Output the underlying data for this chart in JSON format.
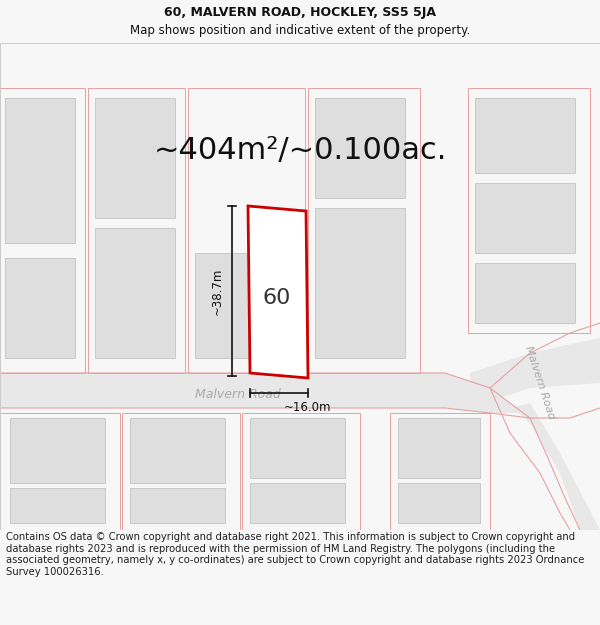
{
  "title_line1": "60, MALVERN ROAD, HOCKLEY, SS5 5JA",
  "title_line2": "Map shows position and indicative extent of the property.",
  "area_text": "~404m²/~0.100ac.",
  "property_number": "60",
  "dim_height_label": "~38.7m",
  "dim_width_label": "~16.0m",
  "road_name1": "Malvern Road",
  "road_name2": "Malvern Road",
  "footer_text": "Contains OS data © Crown copyright and database right 2021. This information is subject to Crown copyright and database rights 2023 and is reproduced with the permission of HM Land Registry. The polygons (including the associated geometry, namely x, y co-ordinates) are subject to Crown copyright and database rights 2023 Ordnance Survey 100026316.",
  "bg_color": "#f7f7f7",
  "map_bg": "#ffffff",
  "road_fill": "#e8e8e8",
  "building_fill": "#dedede",
  "building_edge": "#bbbbbb",
  "plot_outline_color": "#cc0000",
  "plot_fill": "#ffffff",
  "dim_line_color": "#111111",
  "road_line_color": "#e8a0a0",
  "road_label_color": "#aaaaaa",
  "title_fontsize": 9,
  "area_fontsize": 22,
  "footer_fontsize": 7.2,
  "map_border_color": "#cccccc"
}
